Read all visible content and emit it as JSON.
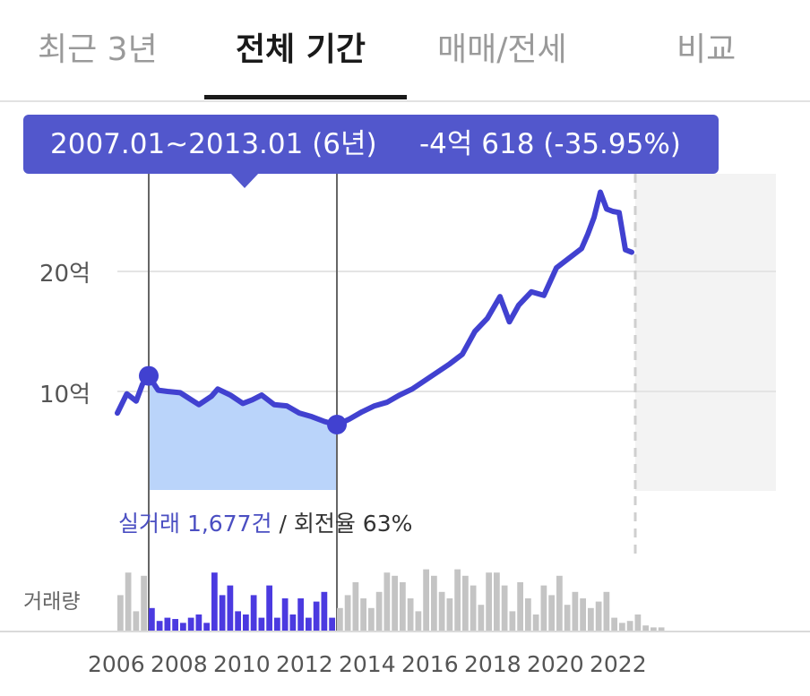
{
  "tabs": [
    {
      "label": "최근 3년",
      "active": false
    },
    {
      "label": "전체 기간",
      "active": true
    },
    {
      "label": "매매/전세",
      "active": false
    },
    {
      "label": "비교",
      "active": false
    }
  ],
  "tooltip": {
    "range": "2007.01~2013.01 (6년)",
    "change": "-4억 618 (-35.95%)"
  },
  "trade_summary": {
    "accent": "실거래 1,677건",
    "rest": " / 회전율 63%"
  },
  "volume_label": "거래량",
  "colors": {
    "line": "#4141d0",
    "selection_fill": "#b6d2fa",
    "tooltip_bg": "#5257cc",
    "volume_selected": "#4b3ae0",
    "volume_other": "#c4c4c4",
    "future_shade": "#f3f3f3"
  },
  "chart_data": {
    "type": "line",
    "x_ticks": [
      "2006",
      "2008",
      "2010",
      "2012",
      "2014",
      "2016",
      "2018",
      "2020",
      "2022"
    ],
    "y_ticks": [
      "10억",
      "20억"
    ],
    "y_unit": "억",
    "ylim": [
      0,
      30
    ],
    "xlim": [
      2006,
      2023
    ],
    "selection": {
      "start": 2007.0,
      "end": 2013.0,
      "start_value": 11.3,
      "end_value": 7.24
    },
    "series": [
      {
        "x": [
          2006.0,
          2006.3,
          2006.6,
          2006.8,
          2007.0,
          2007.3,
          2007.6,
          2008.0,
          2008.3,
          2008.6,
          2009.0,
          2009.2,
          2009.6,
          2010.0,
          2010.3,
          2010.6,
          2011.0,
          2011.4,
          2011.8,
          2012.2,
          2012.6,
          2013.0,
          2013.4,
          2013.8,
          2014.2,
          2014.6,
          2015.0,
          2015.4,
          2015.8,
          2016.2,
          2016.6,
          2017.0,
          2017.4,
          2017.8,
          2018.2,
          2018.5,
          2018.8,
          2019.2,
          2019.6,
          2020.0,
          2020.4,
          2020.8,
          2021.0,
          2021.2,
          2021.4,
          2021.6,
          2021.8,
          2022.0,
          2022.2,
          2022.4
        ],
        "y": [
          8.2,
          9.8,
          9.2,
          10.6,
          11.3,
          10.1,
          10.0,
          9.9,
          9.4,
          8.9,
          9.6,
          10.2,
          9.7,
          9.0,
          9.3,
          9.7,
          8.9,
          8.8,
          8.2,
          7.9,
          7.5,
          7.2,
          7.7,
          8.3,
          8.8,
          9.1,
          9.7,
          10.2,
          10.9,
          11.6,
          12.3,
          13.1,
          15.0,
          16.1,
          17.9,
          15.8,
          17.2,
          18.3,
          18.0,
          20.3,
          21.1,
          21.9,
          23.1,
          24.5,
          26.6,
          25.2,
          25.0,
          24.9,
          21.8,
          21.6
        ]
      }
    ],
    "volume": {
      "x_start": 2006.0,
      "step": 0.25,
      "values": [
        0.55,
        0.9,
        0.3,
        0.85,
        0.35,
        0.15,
        0.2,
        0.18,
        0.12,
        0.2,
        0.25,
        0.12,
        0.9,
        0.55,
        0.7,
        0.3,
        0.25,
        0.55,
        0.2,
        0.7,
        0.2,
        0.5,
        0.25,
        0.5,
        0.2,
        0.45,
        0.6,
        0.2,
        0.35,
        0.55,
        0.75,
        0.5,
        0.35,
        0.6,
        0.9,
        0.85,
        0.75,
        0.5,
        0.3,
        0.95,
        0.85,
        0.6,
        0.5,
        0.95,
        0.85,
        0.7,
        0.4,
        0.9,
        0.9,
        0.7,
        0.3,
        0.75,
        0.5,
        0.25,
        0.7,
        0.55,
        0.85,
        0.4,
        0.6,
        0.5,
        0.35,
        0.45,
        0.6,
        0.2,
        0.12,
        0.15,
        0.25,
        0.08,
        0.05,
        0.05
      ]
    }
  }
}
